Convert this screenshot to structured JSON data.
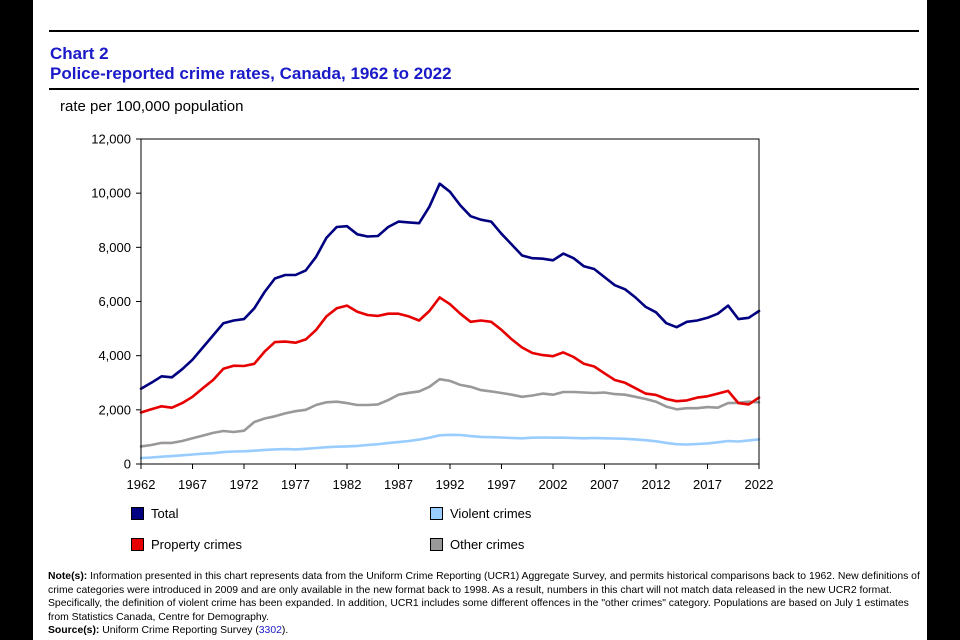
{
  "header": {
    "chart_number": "Chart 2",
    "title": "Police-reported crime rates, Canada, 1962 to 2022",
    "unit": "rate per 100,000 population"
  },
  "notes": {
    "note_label": "Note(s):",
    "note_text": "Information presented in this chart represents data from the Uniform Crime Reporting (UCR1) Aggregate Survey, and permits historical comparisons back to 1962. New definitions of crime categories were introduced in 2009 and are only available in the new format back to 1998. As a result, numbers in this chart will not match data released in the new UCR2 format. Specifically, the definition of violent crime has been expanded. In addition, UCR1 includes some different offences in the \"other crimes\" category. Populations are based on July 1 estimates from Statistics Canada, Centre for Demography.",
    "source_label": "Source(s):",
    "source_text": "Uniform Crime Reporting Survey",
    "source_open": "(",
    "source_link": "3302",
    "source_close": ")."
  },
  "chart_data": {
    "type": "line",
    "title": "Police-reported crime rates, Canada, 1962 to 2022",
    "ylabel": "rate per 100,000 population",
    "xlabel": "",
    "xlim": [
      1962,
      2022
    ],
    "ylim": [
      0,
      12000
    ],
    "y_ticks": [
      0,
      2000,
      4000,
      6000,
      8000,
      10000,
      12000
    ],
    "y_tick_labels": [
      "0",
      "2,000",
      "4,000",
      "6,000",
      "8,000",
      "10,000",
      "12,000"
    ],
    "x_ticks": [
      1962,
      1967,
      1972,
      1977,
      1982,
      1987,
      1992,
      1997,
      2002,
      2007,
      2012,
      2017,
      2022
    ],
    "x_tick_labels": [
      "1962",
      "1967",
      "1972",
      "1977",
      "1982",
      "1987",
      "1992",
      "1997",
      "2002",
      "2007",
      "2012",
      "2017",
      "2022"
    ],
    "grid": false,
    "legend_position": "bottom",
    "x": [
      1962,
      1963,
      1964,
      1965,
      1966,
      1967,
      1968,
      1969,
      1970,
      1971,
      1972,
      1973,
      1974,
      1975,
      1976,
      1977,
      1978,
      1979,
      1980,
      1981,
      1982,
      1983,
      1984,
      1985,
      1986,
      1987,
      1988,
      1989,
      1990,
      1991,
      1992,
      1993,
      1994,
      1995,
      1996,
      1997,
      1998,
      1999,
      2000,
      2001,
      2002,
      2003,
      2004,
      2005,
      2006,
      2007,
      2008,
      2009,
      2010,
      2011,
      2012,
      2013,
      2014,
      2015,
      2016,
      2017,
      2018,
      2019,
      2020,
      2021,
      2022
    ],
    "series": [
      {
        "name": "Total",
        "color": "#000080",
        "values": [
          2780,
          3000,
          3240,
          3200,
          3500,
          3850,
          4300,
          4750,
          5200,
          5300,
          5350,
          5750,
          6350,
          6850,
          6980,
          6980,
          7150,
          7650,
          8350,
          8750,
          8780,
          8480,
          8400,
          8420,
          8750,
          8950,
          8920,
          8890,
          9500,
          10350,
          10050,
          9550,
          9150,
          9020,
          8950,
          8500,
          8100,
          7700,
          7600,
          7580,
          7520,
          7770,
          7600,
          7300,
          7200,
          6900,
          6600,
          6450,
          6150,
          5800,
          5600,
          5200,
          5050,
          5250,
          5300,
          5400,
          5550,
          5850,
          5350,
          5400,
          5650
        ]
      },
      {
        "name": "Violent crimes",
        "color": "#99ccff",
        "values": [
          220,
          240,
          270,
          290,
          320,
          350,
          380,
          400,
          440,
          460,
          470,
          490,
          520,
          540,
          550,
          540,
          560,
          590,
          620,
          640,
          650,
          670,
          700,
          730,
          770,
          810,
          850,
          900,
          970,
          1060,
          1080,
          1070,
          1030,
          1000,
          990,
          980,
          960,
          950,
          970,
          980,
          970,
          970,
          960,
          950,
          960,
          950,
          940,
          930,
          910,
          880,
          840,
          780,
          730,
          720,
          740,
          760,
          800,
          850,
          830,
          870,
          910
        ]
      },
      {
        "name": "Property crimes",
        "color": "#e60000",
        "values": [
          1900,
          2020,
          2130,
          2080,
          2250,
          2480,
          2800,
          3100,
          3520,
          3630,
          3620,
          3700,
          4150,
          4500,
          4520,
          4480,
          4600,
          4950,
          5450,
          5750,
          5850,
          5620,
          5500,
          5470,
          5550,
          5550,
          5450,
          5300,
          5650,
          6150,
          5900,
          5550,
          5250,
          5300,
          5250,
          4950,
          4600,
          4300,
          4100,
          4020,
          3980,
          4120,
          3950,
          3700,
          3600,
          3350,
          3100,
          3000,
          2800,
          2600,
          2550,
          2400,
          2320,
          2350,
          2450,
          2500,
          2600,
          2700,
          2250,
          2200,
          2450
        ]
      },
      {
        "name": "Other crimes",
        "color": "#999999",
        "values": [
          650,
          700,
          780,
          780,
          850,
          950,
          1050,
          1150,
          1220,
          1180,
          1230,
          1550,
          1680,
          1760,
          1870,
          1950,
          2000,
          2180,
          2280,
          2300,
          2250,
          2180,
          2180,
          2200,
          2360,
          2560,
          2630,
          2680,
          2850,
          3130,
          3070,
          2920,
          2850,
          2730,
          2680,
          2620,
          2560,
          2480,
          2530,
          2600,
          2560,
          2660,
          2660,
          2640,
          2620,
          2640,
          2580,
          2560,
          2480,
          2400,
          2300,
          2120,
          2020,
          2060,
          2060,
          2100,
          2080,
          2250,
          2260,
          2300,
          2280
        ]
      }
    ],
    "legend": [
      {
        "label": "Total",
        "color": "#000080"
      },
      {
        "label": "Violent crimes",
        "color": "#99ccff"
      },
      {
        "label": "Property crimes",
        "color": "#e60000"
      },
      {
        "label": "Other crimes",
        "color": "#999999"
      }
    ]
  }
}
